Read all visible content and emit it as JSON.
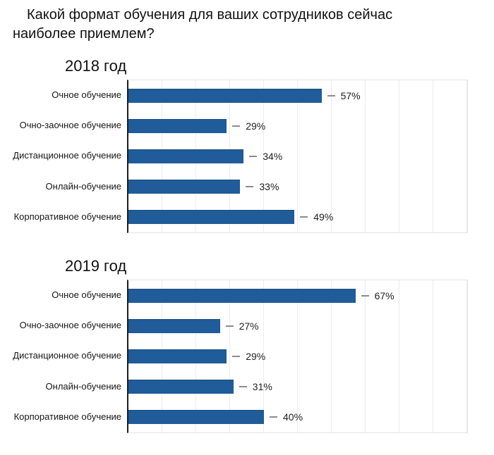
{
  "header": {
    "title": "Какой формат обучения для ваших сотрудников сейчас наиболее приемлем?",
    "title_lines": [
      "Какой формат обучения для ваших сотрудников сейчас",
      "наиболее приемлем?"
    ]
  },
  "colors": {
    "bar": "#1f5c99",
    "bar_edge": "#194b7e",
    "axis": "#1c1c1c",
    "grid": "#ececec",
    "frame": "#e3e3e3",
    "dash": "#8c8c8c",
    "text": "#111111",
    "background": "#ffffff"
  },
  "chart_data": [
    {
      "type": "bar",
      "orientation": "horizontal",
      "title": "2018 год",
      "categories": [
        "Очное обучение",
        "Очно-заочное обучение",
        "Дистанционное обучение",
        "Онлайн-обучение",
        "Корпоративное обучение"
      ],
      "values": [
        57,
        29,
        34,
        33,
        49
      ],
      "value_labels": [
        "57%",
        "29%",
        "34%",
        "33%",
        "49%"
      ],
      "value_suffix": "%",
      "xlim": [
        0,
        100
      ],
      "grid": "vertical gridlines every 10%, no tick labels",
      "legend": "none",
      "xlabel": "",
      "ylabel": ""
    },
    {
      "type": "bar",
      "orientation": "horizontal",
      "title": "2019 год",
      "categories": [
        "Очное обучение",
        "Очно-заочное обучение",
        "Дистанционное обучение",
        "Онлайн-обучение",
        "Корпоративное обучение"
      ],
      "values": [
        67,
        27,
        29,
        31,
        40
      ],
      "value_labels": [
        "67%",
        "27%",
        "29%",
        "31%",
        "40%"
      ],
      "value_suffix": "%",
      "xlim": [
        0,
        100
      ],
      "grid": "vertical gridlines every 10%, no tick labels",
      "legend": "none",
      "xlabel": "",
      "ylabel": ""
    }
  ]
}
